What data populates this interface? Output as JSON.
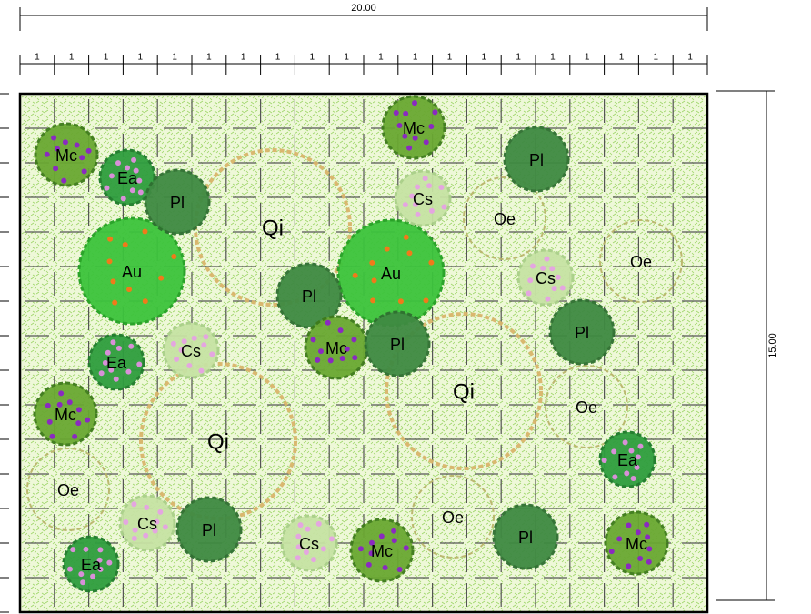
{
  "dimensions": {
    "width": "20.00",
    "height": "15.00",
    "segments": [
      "1",
      "1",
      "1",
      "1",
      "1",
      "1",
      "1",
      "1",
      "1",
      "1",
      "1",
      "1",
      "1",
      "1",
      "1",
      "1",
      "1",
      "1",
      "1",
      "1"
    ]
  },
  "plants": [
    "Qi",
    "Qi",
    "Qi",
    "Oe",
    "Oe",
    "Oe",
    "Oe",
    "Oe",
    "Au",
    "Au",
    "Mc",
    "Ea",
    "Pl",
    "Pl",
    "Mc",
    "Cs",
    "Pl",
    "Cs",
    "Pl",
    "Mc",
    "Pl",
    "Ea",
    "Cs",
    "Mc",
    "Ea",
    "Cs",
    "Pl",
    "Cs",
    "Mc",
    "Pl",
    "Mc",
    "Ea"
  ]
}
